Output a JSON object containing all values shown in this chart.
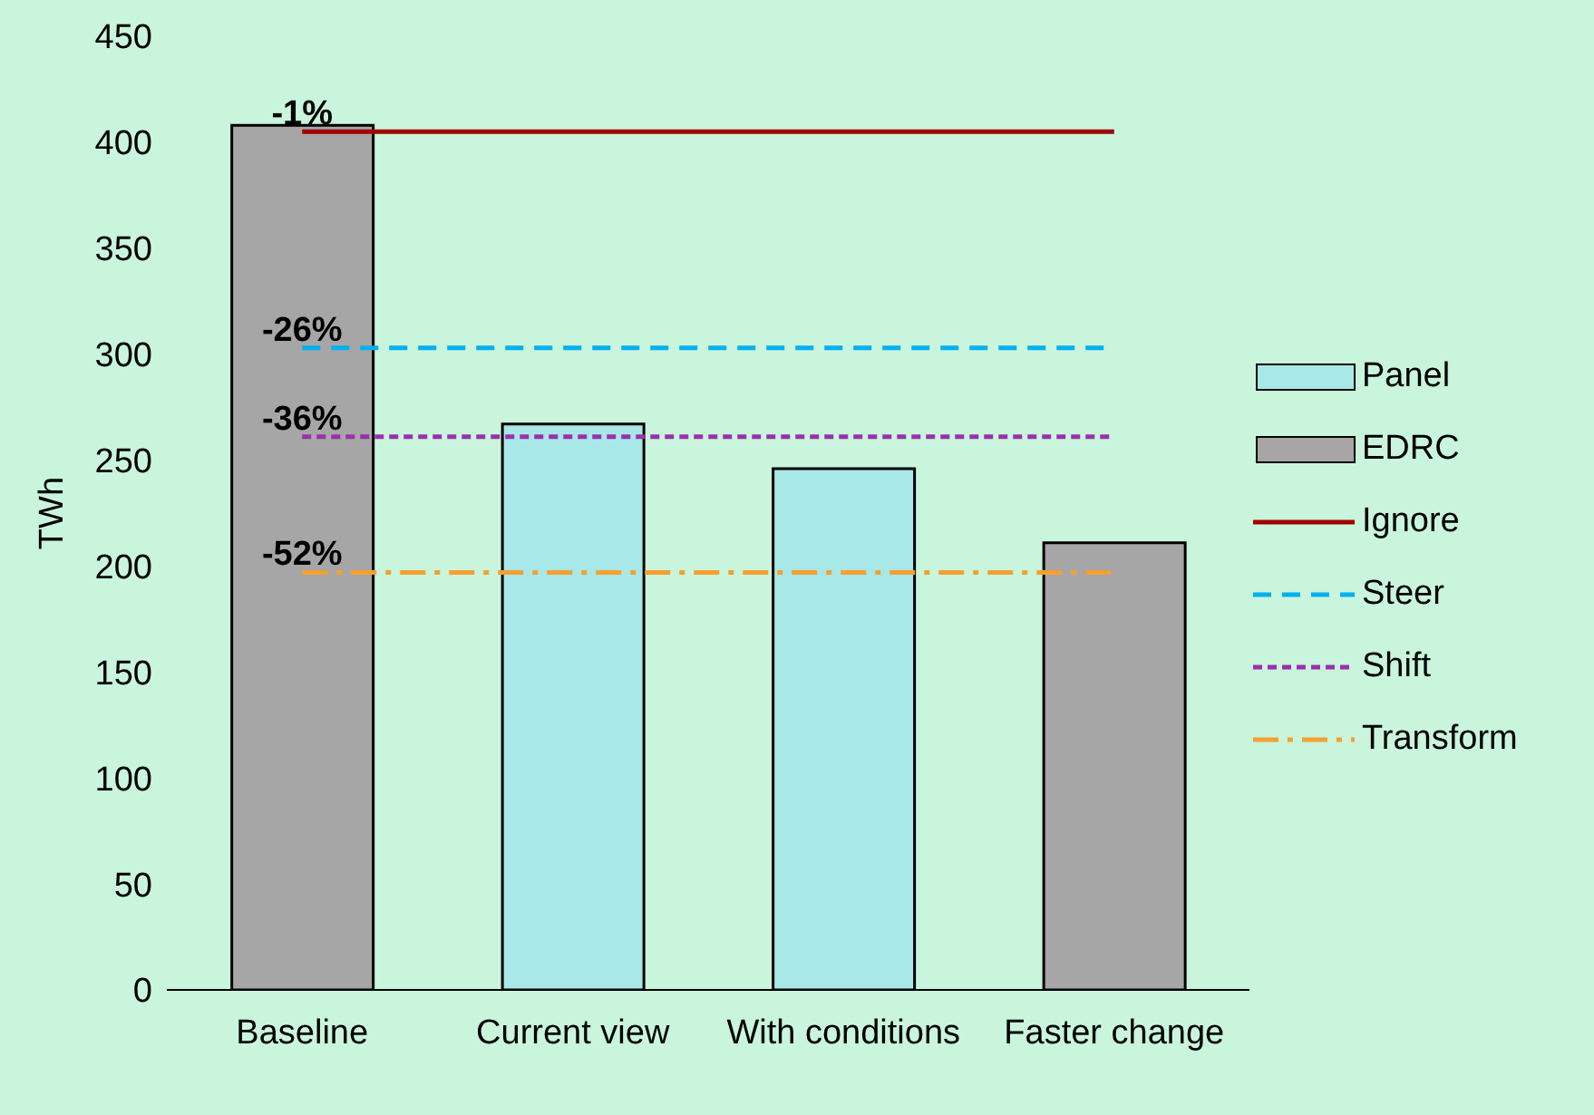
{
  "chart_data": {
    "type": "bar",
    "ylabel": "TWh",
    "categories": [
      "Baseline",
      "Current view",
      "With conditions",
      "Faster change"
    ],
    "stacked": true,
    "ylim": [
      0,
      450
    ],
    "yticks": [
      0,
      50,
      100,
      150,
      200,
      250,
      300,
      350,
      400,
      450
    ],
    "grid": false,
    "legend": "right",
    "marker": "none",
    "series": [
      {
        "name": "Panel",
        "color": "#a8e8e8",
        "values": [
          null,
          267,
          246,
          null
        ]
      },
      {
        "name": "EDRC",
        "color": "#a6a6a6",
        "values": [
          408,
          null,
          null,
          211
        ]
      },
      {
        "name": "Ignore",
        "type": "line",
        "line_style": "solid",
        "color": "#a00000",
        "values": [
          405,
          405,
          405,
          405
        ]
      },
      {
        "name": "Steer",
        "type": "line",
        "line_style": "dashed",
        "color": "#00b0f0",
        "values": [
          303,
          303,
          303,
          303
        ]
      },
      {
        "name": "Shift",
        "type": "line",
        "line_style": "dotted",
        "color": "#9b2fae",
        "values": [
          261,
          261,
          261,
          261
        ]
      },
      {
        "name": "Transform",
        "type": "line",
        "line_style": "dashdot",
        "color": "#f5a030",
        "values": [
          197,
          197,
          197,
          197
        ]
      }
    ],
    "annotations": [
      {
        "text": "-1%",
        "x": "Baseline",
        "y": 405
      },
      {
        "text": "-26%",
        "x": "Baseline",
        "y": 303
      },
      {
        "text": "-36%",
        "x": "Baseline",
        "y": 261
      },
      {
        "text": "-52%",
        "x": "Baseline",
        "y": 197
      }
    ]
  }
}
